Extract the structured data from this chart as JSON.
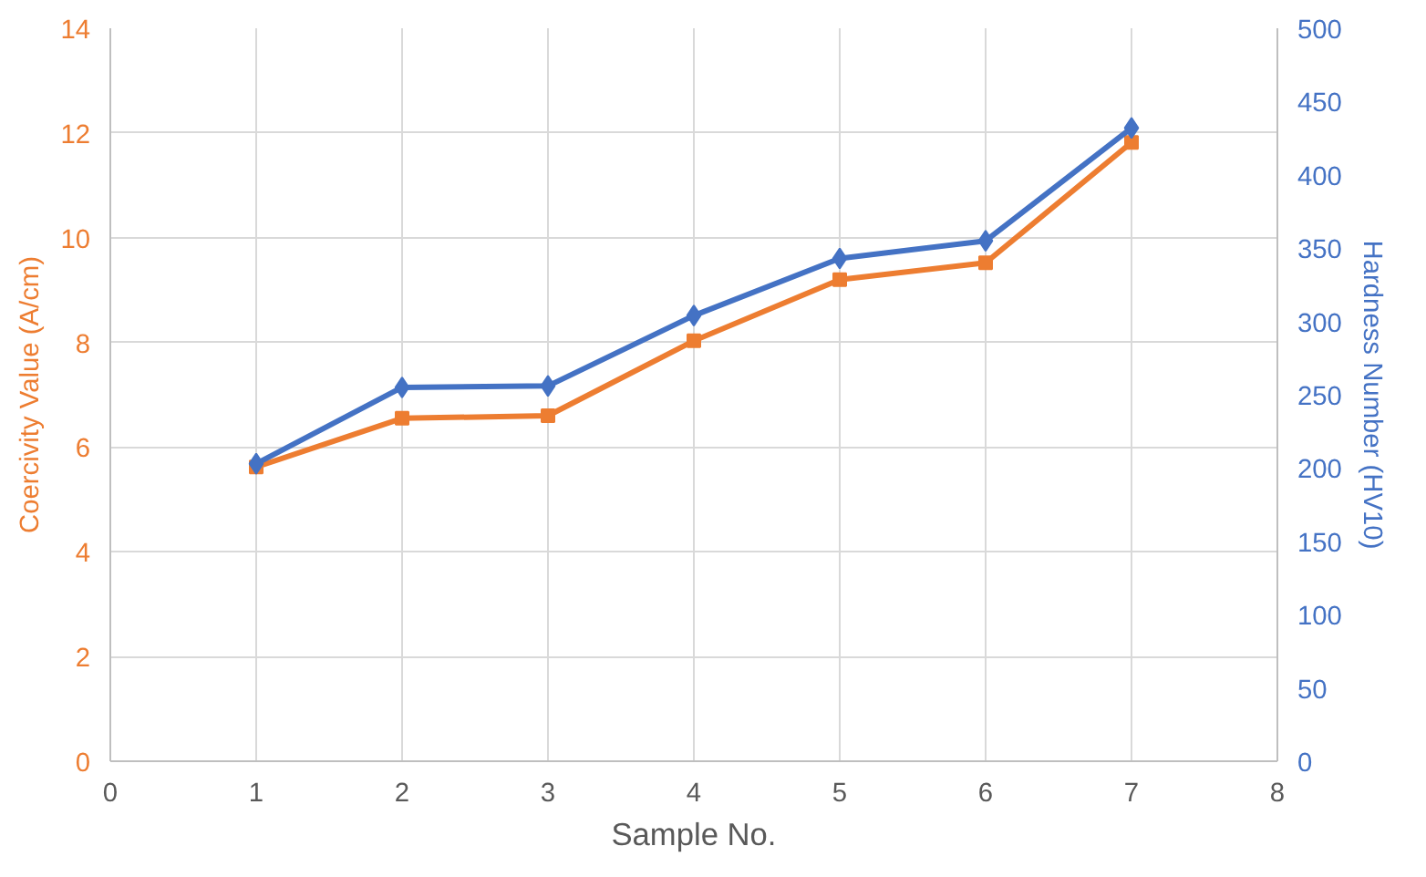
{
  "chart_data": {
    "type": "line",
    "xlabel": "Sample No.",
    "ylabel": "Coercivity Value (A/cm)",
    "y2label": "Hardness Number (HV10)",
    "x": [
      1,
      2,
      3,
      4,
      5,
      6,
      7
    ],
    "series": [
      {
        "color": "#ed7d31",
        "values": [
          5.62,
          6.55,
          6.6,
          8.03,
          9.2,
          9.52,
          11.82
        ],
        "marker": "square"
      },
      {
        "color": "#4472c4",
        "values": [
          203,
          255,
          256,
          304,
          343,
          355,
          432
        ],
        "marker": "diamond",
        "axis": "y2"
      }
    ],
    "xlim": [
      0,
      8
    ],
    "xticks": [
      0,
      1,
      2,
      3,
      4,
      5,
      6,
      7,
      8
    ],
    "ylim": [
      0,
      14
    ],
    "yticks": [
      0,
      2,
      4,
      6,
      8,
      10,
      12,
      14
    ],
    "y2lim": [
      0,
      500
    ],
    "y2ticks": [
      0,
      50,
      100,
      150,
      200,
      250,
      300,
      350,
      400,
      450,
      500
    ],
    "grid": true,
    "line_style": "solid"
  }
}
